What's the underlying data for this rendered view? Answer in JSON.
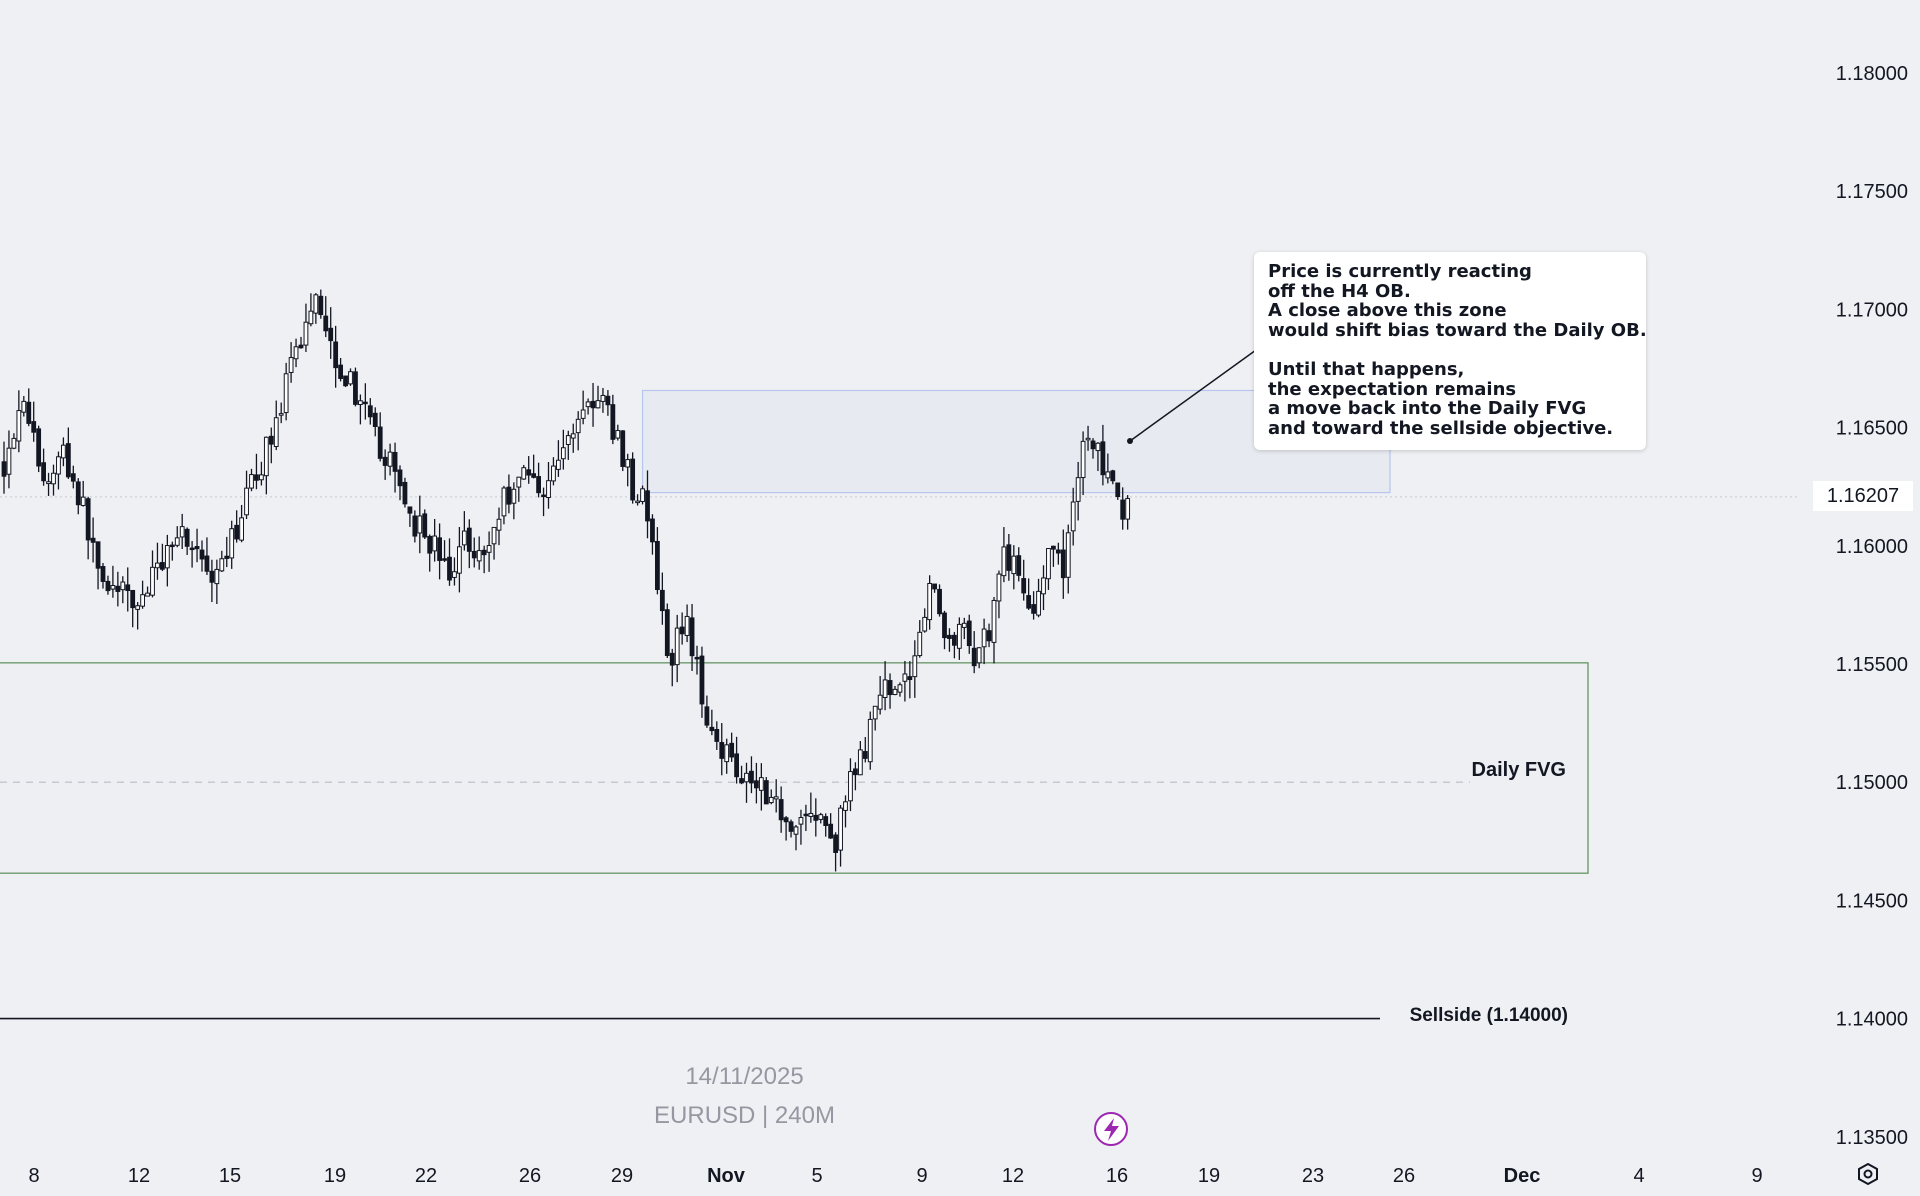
{
  "chart_data": {
    "type": "candlestick",
    "symbol_line": "EURUSD | 240M",
    "date_line": "14/11/2025",
    "last_price": "1.16207",
    "y_axis": {
      "range": [
        1.1335,
        1.1825
      ],
      "ticks": [
        "1.18000",
        "1.17500",
        "1.17000",
        "1.16500",
        "1.16000",
        "1.15500",
        "1.15000",
        "1.14500",
        "1.14000",
        "1.13500"
      ]
    },
    "x_axis": {
      "ticks": [
        {
          "label": "8",
          "bold": false
        },
        {
          "label": "12",
          "bold": false
        },
        {
          "label": "15",
          "bold": false
        },
        {
          "label": "19",
          "bold": false
        },
        {
          "label": "22",
          "bold": false
        },
        {
          "label": "26",
          "bold": false
        },
        {
          "label": "29",
          "bold": false
        },
        {
          "label": "Nov",
          "bold": true
        },
        {
          "label": "5",
          "bold": false
        },
        {
          "label": "9",
          "bold": false
        },
        {
          "label": "12",
          "bold": false
        },
        {
          "label": "16",
          "bold": false
        },
        {
          "label": "19",
          "bold": false
        },
        {
          "label": "23",
          "bold": false
        },
        {
          "label": "26",
          "bold": false
        },
        {
          "label": "Dec",
          "bold": true
        },
        {
          "label": "4",
          "bold": false
        },
        {
          "label": "9",
          "bold": false
        }
      ]
    },
    "path_points": [
      [
        0,
        1.1635
      ],
      [
        4,
        1.1665
      ],
      [
        8,
        1.1625
      ],
      [
        12,
        1.164
      ],
      [
        16,
        1.1615
      ],
      [
        19,
        1.159
      ],
      [
        23,
        1.158
      ],
      [
        27,
        1.1575
      ],
      [
        31,
        1.159
      ],
      [
        35,
        1.1608
      ],
      [
        39,
        1.1598
      ],
      [
        42,
        1.158
      ],
      [
        45,
        1.1595
      ],
      [
        48,
        1.1615
      ],
      [
        52,
        1.1635
      ],
      [
        56,
        1.166
      ],
      [
        60,
        1.1688
      ],
      [
        63,
        1.1708
      ],
      [
        67,
        1.168
      ],
      [
        71,
        1.1665
      ],
      [
        75,
        1.1645
      ],
      [
        79,
        1.163
      ],
      [
        83,
        1.161
      ],
      [
        87,
        1.16
      ],
      [
        90,
        1.1585
      ],
      [
        93,
        1.1605
      ],
      [
        97,
        1.1595
      ],
      [
        101,
        1.162
      ],
      [
        105,
        1.1632
      ],
      [
        109,
        1.1625
      ],
      [
        113,
        1.164
      ],
      [
        117,
        1.166
      ],
      [
        121,
        1.166
      ],
      [
        124,
        1.1645
      ],
      [
        127,
        1.1625
      ],
      [
        129,
        1.162
      ],
      [
        131,
        1.16
      ],
      [
        134,
        1.155
      ],
      [
        138,
        1.157
      ],
      [
        141,
        1.1535
      ],
      [
        145,
        1.1515
      ],
      [
        149,
        1.1505
      ],
      [
        153,
        1.15
      ],
      [
        156,
        1.149
      ],
      [
        160,
        1.1482
      ],
      [
        163,
        1.1488
      ],
      [
        166,
        1.148
      ],
      [
        168,
        1.1475
      ],
      [
        171,
        1.15
      ],
      [
        174,
        1.1515
      ],
      [
        177,
        1.1535
      ],
      [
        180,
        1.1545
      ],
      [
        182,
        1.154
      ],
      [
        185,
        1.1565
      ],
      [
        187,
        1.1585
      ],
      [
        190,
        1.156
      ],
      [
        193,
        1.1565
      ],
      [
        196,
        1.1555
      ],
      [
        199,
        1.1565
      ],
      [
        202,
        1.16
      ],
      [
        205,
        1.1585
      ],
      [
        208,
        1.1575
      ],
      [
        211,
        1.1595
      ],
      [
        214,
        1.159
      ],
      [
        216,
        1.162
      ],
      [
        218,
        1.1645
      ],
      [
        221,
        1.164
      ],
      [
        224,
        1.1622
      ],
      [
        226,
        1.161
      ],
      [
        227,
        1.1618
      ]
    ],
    "annotations": {
      "h4_ob_zone": {
        "x_start": 129,
        "x_end": 280,
        "price_top": 1.16657,
        "price_bottom": 1.16225
      },
      "daily_fvg": {
        "label": "Daily FVG",
        "x_end": 320,
        "price_top": 1.15505,
        "price_bottom": 1.14615,
        "midline": 1.15
      },
      "sellside": {
        "label": "Sellside (1.14000)",
        "price": 1.14
      }
    },
    "note_lines": [
      "Price is currently reacting",
      "off the H4 OB.",
      "A close above this zone",
      "would shift bias toward the Daily OB.",
      "",
      "Until that happens,",
      "the expectation remains",
      "a move back into the Daily FVG",
      "and toward the sellside objective."
    ],
    "colors": {
      "background": "#eff0f4",
      "candle": "#131722",
      "ob_zone": "#b7c6ee",
      "fvg_zone": "#6f9c6f",
      "sellside_line": "#131722"
    }
  },
  "icons": {
    "flash": "lightning-icon",
    "events": [
      "us-flag-icon",
      "us-flag-icon",
      "us-flag-icon",
      "eu-flag-icon"
    ],
    "settings": "settings-gear-icon"
  }
}
